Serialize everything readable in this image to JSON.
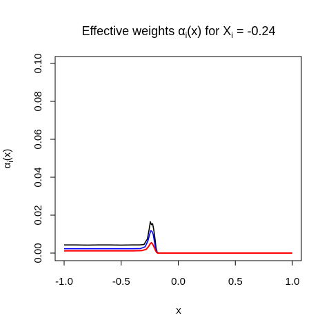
{
  "chart_data": {
    "type": "line",
    "title": "Effective weights αi(x) for Xi = -0.24",
    "title_parts": {
      "prefix": "Effective weights ",
      "alpha": "α",
      "alpha_sub": "i",
      "alpha_args": "(x) for X",
      "x_sub": "i",
      "suffix": " = -0.24"
    },
    "xlabel": "x",
    "ylabel_parts": {
      "alpha": "α",
      "sub": "i",
      "args": "(x)"
    },
    "xlim": [
      -1.0,
      1.0
    ],
    "ylim": [
      0.0,
      0.1
    ],
    "xticks": [
      "-1.0",
      "-0.5",
      "0.0",
      "0.5",
      "1.0"
    ],
    "yticks": [
      "0.00",
      "0.02",
      "0.04",
      "0.06",
      "0.08",
      "0.10"
    ],
    "grid": false,
    "series": [
      {
        "color": "#000000",
        "points": [
          [
            -1.0,
            0.0043
          ],
          [
            -0.9,
            0.0043
          ],
          [
            -0.8,
            0.0042
          ],
          [
            -0.7,
            0.0043
          ],
          [
            -0.6,
            0.0043
          ],
          [
            -0.5,
            0.0042
          ],
          [
            -0.4,
            0.0043
          ],
          [
            -0.34,
            0.0043
          ],
          [
            -0.3,
            0.0045
          ],
          [
            -0.27,
            0.0075
          ],
          [
            -0.255,
            0.0125
          ],
          [
            -0.245,
            0.0165
          ],
          [
            -0.235,
            0.015
          ],
          [
            -0.225,
            0.0155
          ],
          [
            -0.215,
            0.0125
          ],
          [
            -0.205,
            0.008
          ],
          [
            -0.195,
            0.003
          ],
          [
            -0.185,
            0.0005
          ],
          [
            -0.17,
            0.0
          ],
          [
            0.0,
            0.0
          ],
          [
            0.5,
            0.0
          ],
          [
            1.0,
            0.0
          ]
        ]
      },
      {
        "color": "#0000ff",
        "points": [
          [
            -1.0,
            0.0023
          ],
          [
            -0.9,
            0.0023
          ],
          [
            -0.8,
            0.0023
          ],
          [
            -0.7,
            0.0023
          ],
          [
            -0.6,
            0.0023
          ],
          [
            -0.5,
            0.0023
          ],
          [
            -0.4,
            0.0023
          ],
          [
            -0.33,
            0.0024
          ],
          [
            -0.29,
            0.0033
          ],
          [
            -0.265,
            0.0065
          ],
          [
            -0.25,
            0.01
          ],
          [
            -0.24,
            0.0118
          ],
          [
            -0.23,
            0.0115
          ],
          [
            -0.22,
            0.01
          ],
          [
            -0.21,
            0.0065
          ],
          [
            -0.2,
            0.003
          ],
          [
            -0.19,
            0.0008
          ],
          [
            -0.175,
            0.0
          ],
          [
            0.0,
            0.0
          ],
          [
            0.5,
            0.0
          ],
          [
            1.0,
            0.0
          ]
        ]
      },
      {
        "color": "#ff0000",
        "points": [
          [
            -1.0,
            0.0012
          ],
          [
            -0.9,
            0.0012
          ],
          [
            -0.8,
            0.0012
          ],
          [
            -0.7,
            0.0012
          ],
          [
            -0.6,
            0.0012
          ],
          [
            -0.5,
            0.0012
          ],
          [
            -0.4,
            0.0012
          ],
          [
            -0.32,
            0.0013
          ],
          [
            -0.28,
            0.002
          ],
          [
            -0.26,
            0.0035
          ],
          [
            -0.245,
            0.005
          ],
          [
            -0.235,
            0.0055
          ],
          [
            -0.225,
            0.0048
          ],
          [
            -0.21,
            0.003
          ],
          [
            -0.2,
            0.0015
          ],
          [
            -0.19,
            0.0004
          ],
          [
            -0.18,
            0.0
          ],
          [
            0.0,
            0.0
          ],
          [
            0.5,
            0.0
          ],
          [
            1.0,
            0.0
          ]
        ]
      }
    ]
  }
}
